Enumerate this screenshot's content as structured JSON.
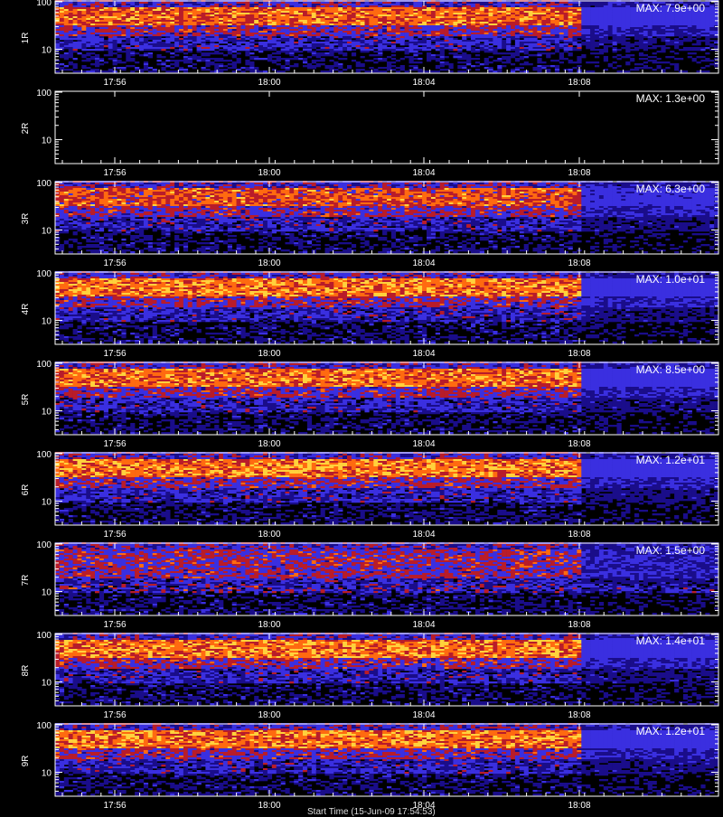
{
  "chart_data": [
    {
      "type": "heatmap",
      "panel_label": "1R",
      "max_label": "MAX: 7.9e+00",
      "data_end_tick": "18:08",
      "x_ticks": [
        "17:56",
        "18:00",
        "18:04",
        "18:08"
      ],
      "y_ticks": [
        "100",
        "10"
      ],
      "y_scale": "log",
      "z_max": 7.9,
      "z_min": 0,
      "xlabel": "",
      "ylabel": "1R",
      "grid": false,
      "empty": false,
      "noise_seed": 11
    },
    {
      "type": "heatmap",
      "panel_label": "2R",
      "max_label": "MAX: 1.3e+00",
      "data_end_tick": "18:08",
      "x_ticks": [
        "17:56",
        "18:00",
        "18:04",
        "18:08"
      ],
      "y_ticks": [
        "100",
        "10"
      ],
      "y_scale": "log",
      "z_max": 1.3,
      "z_min": 0,
      "xlabel": "",
      "ylabel": "2R",
      "grid": false,
      "empty": true,
      "noise_seed": 22
    },
    {
      "type": "heatmap",
      "panel_label": "3R",
      "max_label": "MAX: 6.3e+00",
      "data_end_tick": "18:08",
      "x_ticks": [
        "17:56",
        "18:00",
        "18:04",
        "18:08"
      ],
      "y_ticks": [
        "100",
        "10"
      ],
      "y_scale": "log",
      "z_max": 6.3,
      "z_min": 0,
      "xlabel": "",
      "ylabel": "3R",
      "grid": false,
      "empty": false,
      "noise_seed": 33
    },
    {
      "type": "heatmap",
      "panel_label": "4R",
      "max_label": "MAX: 1.0e+01",
      "data_end_tick": "18:08",
      "x_ticks": [
        "17:56",
        "18:00",
        "18:04",
        "18:08"
      ],
      "y_ticks": [
        "100",
        "10"
      ],
      "y_scale": "log",
      "z_max": 10.0,
      "z_min": 0,
      "xlabel": "",
      "ylabel": "4R",
      "grid": false,
      "empty": false,
      "noise_seed": 44
    },
    {
      "type": "heatmap",
      "panel_label": "5R",
      "max_label": "MAX: 8.5e+00",
      "data_end_tick": "18:08",
      "x_ticks": [
        "17:56",
        "18:00",
        "18:04",
        "18:08"
      ],
      "y_ticks": [
        "100",
        "10"
      ],
      "y_scale": "log",
      "z_max": 8.5,
      "z_min": 0,
      "xlabel": "",
      "ylabel": "5R",
      "grid": false,
      "empty": false,
      "noise_seed": 55
    },
    {
      "type": "heatmap",
      "panel_label": "6R",
      "max_label": "MAX: 1.2e+01",
      "data_end_tick": "18:08",
      "x_ticks": [
        "17:56",
        "18:00",
        "18:04",
        "18:08"
      ],
      "y_ticks": [
        "100",
        "10"
      ],
      "y_scale": "log",
      "z_max": 12.0,
      "z_min": 0,
      "xlabel": "",
      "ylabel": "6R",
      "grid": false,
      "empty": false,
      "noise_seed": 66
    },
    {
      "type": "heatmap",
      "panel_label": "7R",
      "max_label": "MAX: 1.5e+00",
      "data_end_tick": "18:08",
      "x_ticks": [
        "17:56",
        "18:00",
        "18:04",
        "18:08"
      ],
      "y_ticks": [
        "100",
        "10"
      ],
      "y_scale": "log",
      "z_max": 1.5,
      "z_min": 0,
      "xlabel": "",
      "ylabel": "7R",
      "grid": false,
      "empty": false,
      "noise_seed": 77
    },
    {
      "type": "heatmap",
      "panel_label": "8R",
      "max_label": "MAX: 1.4e+01",
      "data_end_tick": "18:08",
      "x_ticks": [
        "17:56",
        "18:00",
        "18:04",
        "18:08"
      ],
      "y_ticks": [
        "100",
        "10"
      ],
      "y_scale": "log",
      "z_max": 14.0,
      "z_min": 0,
      "xlabel": "",
      "ylabel": "8R",
      "grid": false,
      "empty": false,
      "noise_seed": 88
    },
    {
      "type": "heatmap",
      "panel_label": "9R",
      "max_label": "MAX: 1.2e+01",
      "data_end_tick": "18:08",
      "x_ticks": [
        "17:56",
        "18:00",
        "18:04",
        "18:08"
      ],
      "y_ticks": [
        "100",
        "10"
      ],
      "y_scale": "log",
      "z_max": 12.0,
      "z_min": 0,
      "xlabel": "",
      "ylabel": "9R",
      "grid": false,
      "empty": false,
      "noise_seed": 99
    }
  ],
  "colors": {
    "background": "#000000",
    "axes": "#ffffff",
    "low": "#1a0d8a",
    "mid": "#3a2fe0",
    "high_mid": "#b81c2a",
    "high": "#ff6a10",
    "peak": "#ffd23c"
  },
  "footer": {
    "time_axis_label": "Start Time (15-Jun-09 17:54:53)"
  }
}
